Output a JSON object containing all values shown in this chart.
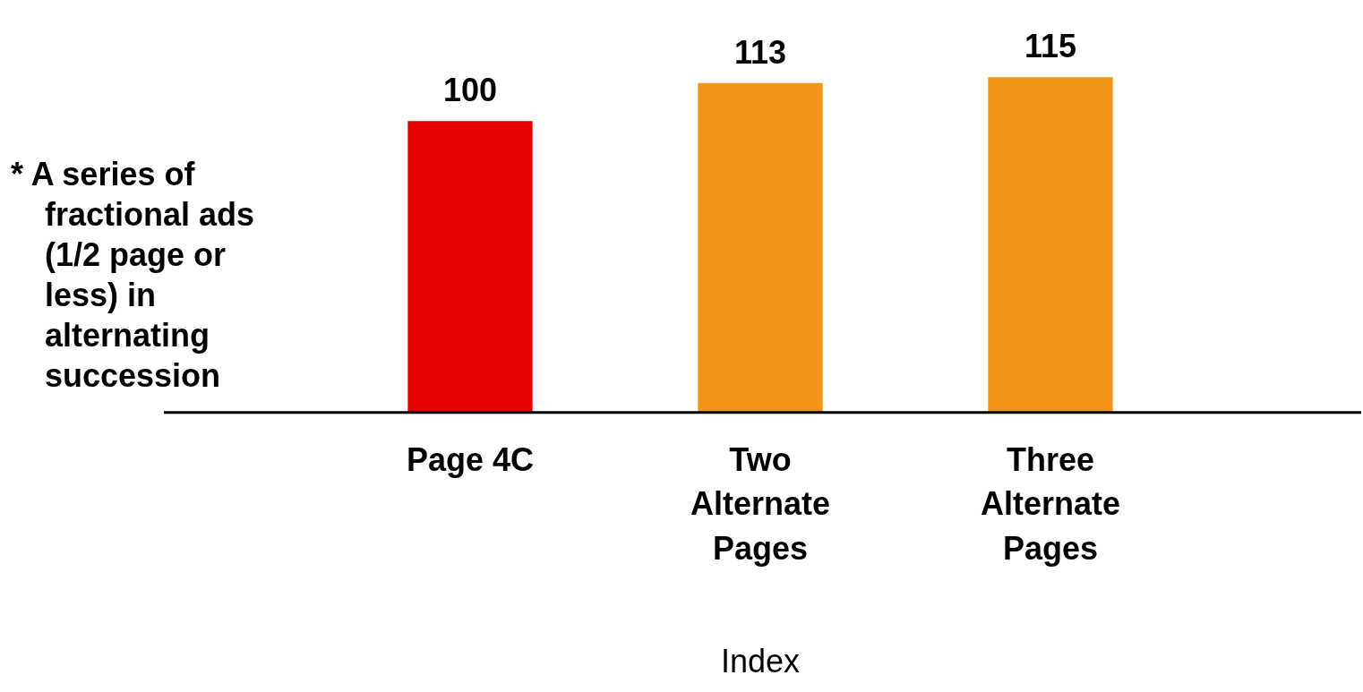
{
  "chart_data": {
    "type": "bar",
    "xlabel": "Index",
    "categories": [
      "Page 4C",
      "Two Alternate Pages",
      "Three Alternate Pages"
    ],
    "values": [
      100,
      113,
      115
    ],
    "colors": [
      "#e60000",
      "#f39419",
      "#f39419"
    ],
    "data_labels": true,
    "grid": false,
    "legend": false,
    "tick_labels": "x",
    "annotations": [
      "* A series of fractional ads (1/2 page or less) in alternating succession"
    ]
  }
}
